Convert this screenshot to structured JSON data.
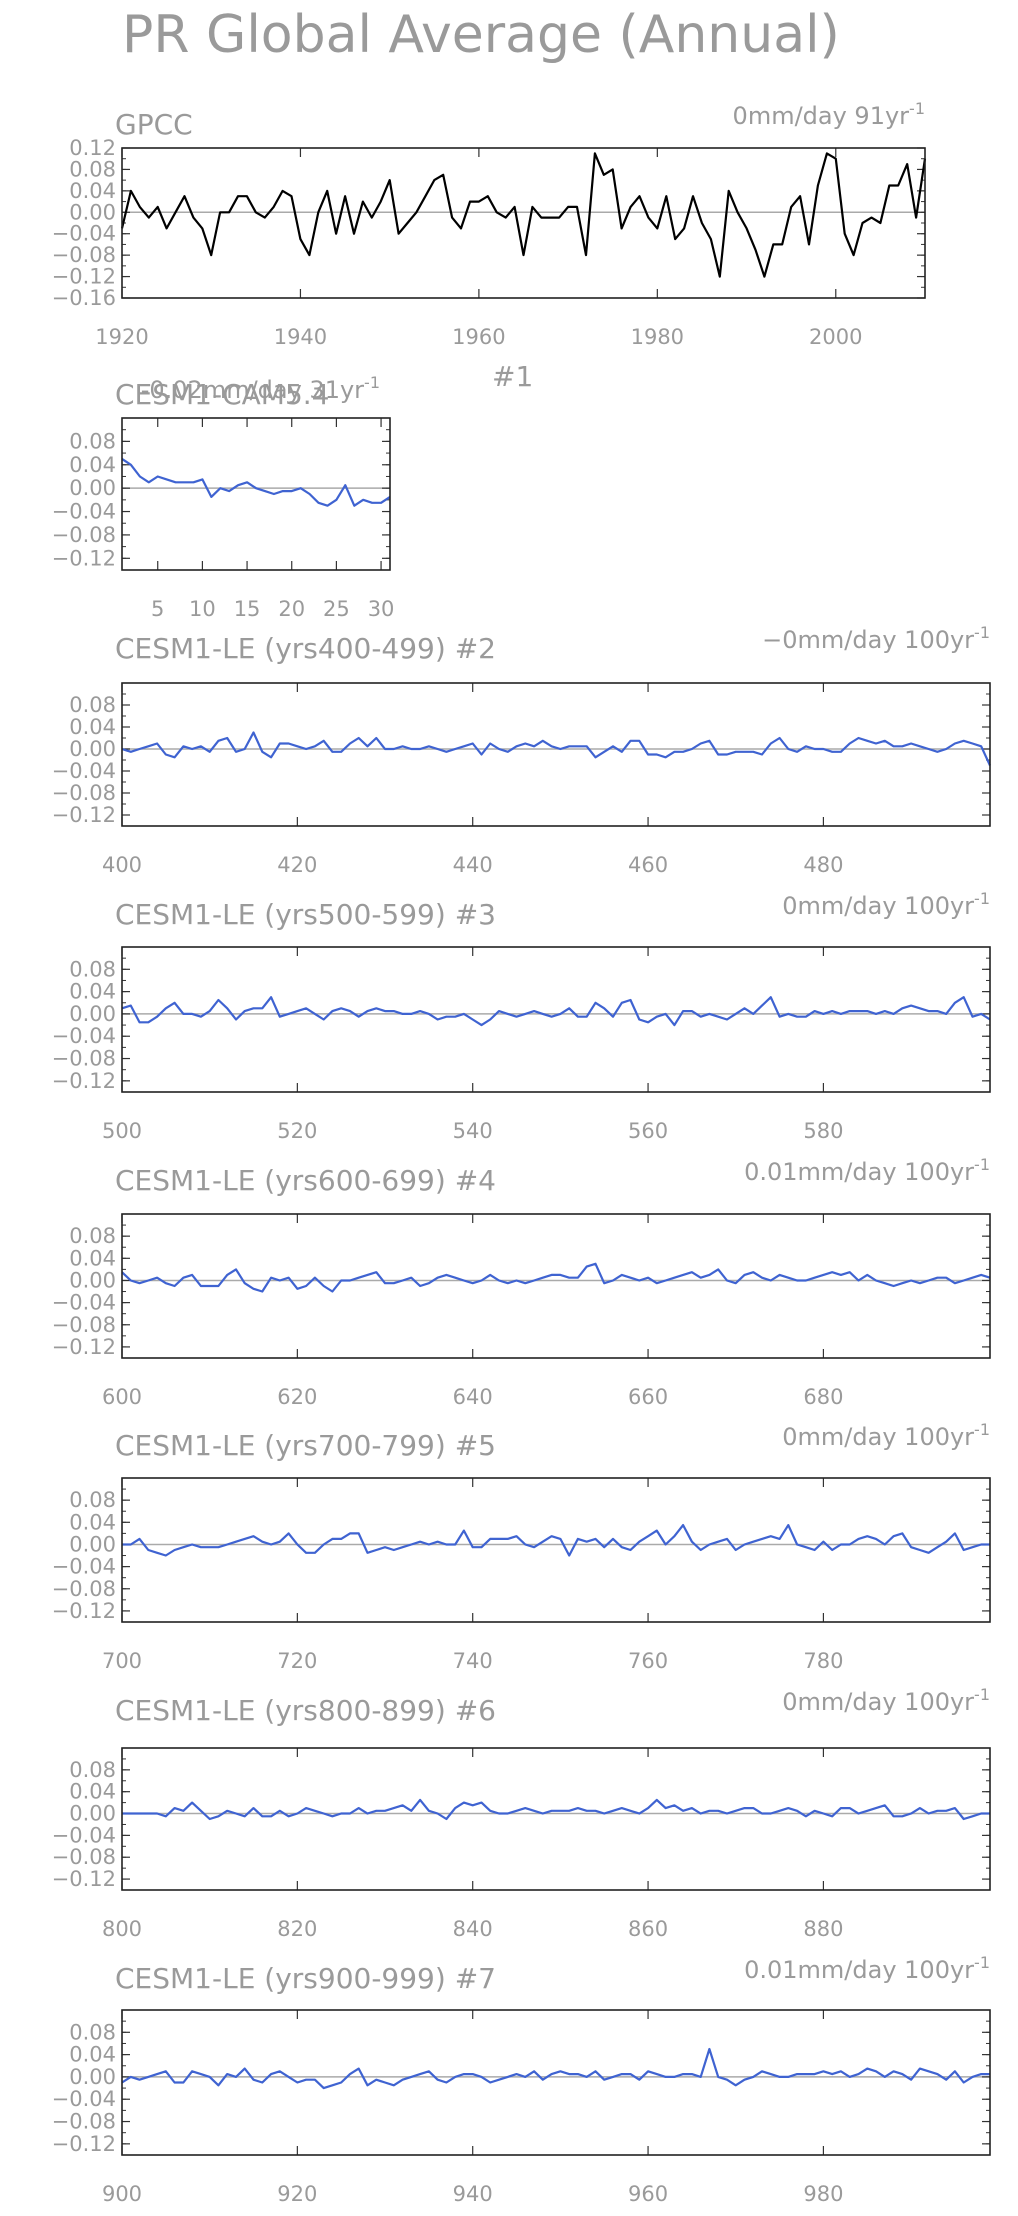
{
  "page_title": "PR Global Average (Annual)",
  "line_colors": {
    "observed": "#000000",
    "model": "#3f63d1",
    "zero_line": "#aaaaaa"
  },
  "chart_data": [
    {
      "type": "line",
      "title": "GPCC",
      "trend": "0mm/day 91yr",
      "trend_sup": "-1",
      "color": "#000000",
      "xlim": [
        1920,
        2010
      ],
      "ylim": [
        -0.16,
        0.12
      ],
      "yticks": [
        "0.12",
        "0.08",
        "0.04",
        "0.00",
        "−0.04",
        "−0.08",
        "−0.12",
        "−0.16"
      ],
      "xticks": [
        "1920",
        "1940",
        "1960",
        "1980",
        "2000"
      ],
      "xtick_values": [
        1920,
        1940,
        1960,
        1980,
        2000
      ],
      "x_start": 1920,
      "values": [
        -0.03,
        0.04,
        0.01,
        -0.01,
        0.01,
        -0.03,
        0.0,
        0.03,
        -0.01,
        -0.03,
        -0.08,
        0.0,
        0.0,
        0.03,
        0.03,
        0.0,
        -0.01,
        0.01,
        0.04,
        0.03,
        -0.05,
        -0.08,
        0.0,
        0.04,
        -0.04,
        0.03,
        -0.04,
        0.02,
        -0.01,
        0.02,
        0.06,
        -0.04,
        -0.02,
        0.0,
        0.03,
        0.06,
        0.07,
        -0.01,
        -0.03,
        0.02,
        0.02,
        0.03,
        0.0,
        -0.01,
        0.01,
        -0.08,
        0.01,
        -0.01,
        -0.01,
        -0.01,
        0.01,
        0.01,
        -0.08,
        0.11,
        0.07,
        0.08,
        -0.03,
        0.01,
        0.03,
        -0.01,
        -0.03,
        0.03,
        -0.05,
        -0.03,
        0.03,
        -0.02,
        -0.05,
        -0.12,
        0.04,
        0.0,
        -0.03,
        -0.07,
        -0.12,
        -0.06,
        -0.06,
        0.01,
        0.03,
        -0.06,
        0.05,
        0.11,
        0.1,
        -0.04,
        -0.08,
        -0.02,
        -0.01,
        -0.02,
        0.05,
        0.05,
        0.09,
        -0.01,
        0.1
      ]
    },
    {
      "type": "line",
      "title": "CESM1-CAM5.4",
      "title_right": "#1",
      "trend": "-0.02mm/day 31yr",
      "trend_sup": "-1",
      "color": "#3f63d1",
      "xlim": [
        1,
        31
      ],
      "ylim": [
        -0.14,
        0.12
      ],
      "yticks": [
        "0.08",
        "0.04",
        "0.00",
        "−0.04",
        "−0.08",
        "−0.12"
      ],
      "xticks": [
        "5",
        "10",
        "15",
        "20",
        "25",
        "30"
      ],
      "xtick_values": [
        5,
        10,
        15,
        20,
        25,
        30
      ],
      "x_start": 1,
      "values": [
        0.05,
        0.04,
        0.02,
        0.01,
        0.02,
        0.015,
        0.01,
        0.01,
        0.01,
        0.015,
        -0.015,
        0.0,
        -0.005,
        0.005,
        0.01,
        0.0,
        -0.005,
        -0.01,
        -0.005,
        -0.005,
        0.0,
        -0.01,
        -0.025,
        -0.03,
        -0.02,
        0.005,
        -0.03,
        -0.02,
        -0.025,
        -0.025,
        -0.015
      ]
    },
    {
      "type": "line",
      "title": "CESM1-LE (yrs400-499) #2",
      "trend": "−0mm/day 100yr",
      "trend_sup": "-1",
      "color": "#3f63d1",
      "xlim": [
        400,
        499
      ],
      "ylim": [
        -0.14,
        0.12
      ],
      "yticks": [
        "0.08",
        "0.04",
        "0.00",
        "−0.04",
        "−0.08",
        "−0.12"
      ],
      "xticks": [
        "400",
        "420",
        "440",
        "460",
        "480"
      ],
      "xtick_values": [
        400,
        420,
        440,
        460,
        480
      ],
      "x_start": 400,
      "values": [
        0.0,
        -0.005,
        0.0,
        0.005,
        0.01,
        -0.01,
        -0.015,
        0.005,
        0.0,
        0.005,
        -0.005,
        0.015,
        0.02,
        -0.005,
        0.0,
        0.03,
        -0.005,
        -0.015,
        0.01,
        0.01,
        0.005,
        0.0,
        0.005,
        0.015,
        -0.005,
        -0.005,
        0.01,
        0.02,
        0.005,
        0.02,
        0.0,
        0.0,
        0.005,
        0.0,
        0.0,
        0.005,
        0.0,
        -0.005,
        0.0,
        0.005,
        0.01,
        -0.01,
        0.01,
        0.0,
        -0.005,
        0.005,
        0.01,
        0.005,
        0.015,
        0.005,
        0.0,
        0.005,
        0.005,
        0.005,
        -0.015,
        -0.005,
        0.005,
        -0.005,
        0.015,
        0.015,
        -0.01,
        -0.01,
        -0.015,
        -0.005,
        -0.005,
        0.0,
        0.01,
        0.015,
        -0.01,
        -0.01,
        -0.005,
        -0.005,
        -0.005,
        -0.01,
        0.01,
        0.02,
        0.0,
        -0.005,
        0.005,
        0.0,
        0.0,
        -0.005,
        -0.005,
        0.01,
        0.02,
        0.015,
        0.01,
        0.015,
        0.005,
        0.005,
        0.01,
        0.005,
        0.0,
        -0.005,
        0.0,
        0.01,
        0.015,
        0.01,
        0.005,
        -0.03
      ]
    },
    {
      "type": "line",
      "title": "CESM1-LE (yrs500-599) #3",
      "trend": "0mm/day 100yr",
      "trend_sup": "-1",
      "color": "#3f63d1",
      "xlim": [
        500,
        599
      ],
      "ylim": [
        -0.14,
        0.12
      ],
      "yticks": [
        "0.08",
        "0.04",
        "0.00",
        "−0.04",
        "−0.08",
        "−0.12"
      ],
      "xticks": [
        "500",
        "520",
        "540",
        "560",
        "580"
      ],
      "xtick_values": [
        500,
        520,
        540,
        560,
        580
      ],
      "x_start": 500,
      "values": [
        0.01,
        0.015,
        -0.015,
        -0.015,
        -0.005,
        0.01,
        0.02,
        0.0,
        0.0,
        -0.005,
        0.005,
        0.025,
        0.01,
        -0.01,
        0.005,
        0.01,
        0.01,
        0.03,
        -0.005,
        0.0,
        0.005,
        0.01,
        0.0,
        -0.01,
        0.005,
        0.01,
        0.005,
        -0.005,
        0.005,
        0.01,
        0.005,
        0.005,
        0.0,
        0.0,
        0.005,
        0.0,
        -0.01,
        -0.005,
        -0.005,
        0.0,
        -0.01,
        -0.02,
        -0.01,
        0.005,
        0.0,
        -0.005,
        0.0,
        0.005,
        0.0,
        -0.005,
        0.0,
        0.01,
        -0.005,
        -0.005,
        0.02,
        0.01,
        -0.005,
        0.02,
        0.025,
        -0.01,
        -0.015,
        -0.005,
        0.0,
        -0.02,
        0.005,
        0.005,
        -0.005,
        0.0,
        -0.005,
        -0.01,
        0.0,
        0.01,
        0.0,
        0.015,
        0.03,
        -0.005,
        0.0,
        -0.005,
        -0.005,
        0.005,
        0.0,
        0.005,
        0.0,
        0.005,
        0.005,
        0.005,
        0.0,
        0.005,
        0.0,
        0.01,
        0.015,
        0.01,
        0.005,
        0.005,
        0.0,
        0.02,
        0.03,
        -0.005,
        0.0,
        -0.01
      ]
    },
    {
      "type": "line",
      "title": "CESM1-LE (yrs600-699) #4",
      "trend": "0.01mm/day 100yr",
      "trend_sup": "-1",
      "color": "#3f63d1",
      "xlim": [
        600,
        699
      ],
      "ylim": [
        -0.14,
        0.12
      ],
      "yticks": [
        "0.08",
        "0.04",
        "0.00",
        "−0.04",
        "−0.08",
        "−0.12"
      ],
      "xticks": [
        "600",
        "620",
        "640",
        "660",
        "680"
      ],
      "xtick_values": [
        600,
        620,
        640,
        660,
        680
      ],
      "x_start": 600,
      "values": [
        0.015,
        0.0,
        -0.005,
        0.0,
        0.005,
        -0.005,
        -0.01,
        0.005,
        0.01,
        -0.01,
        -0.01,
        -0.01,
        0.01,
        0.02,
        -0.005,
        -0.015,
        -0.02,
        0.005,
        0.0,
        0.005,
        -0.015,
        -0.01,
        0.005,
        -0.01,
        -0.02,
        0.0,
        0.0,
        0.005,
        0.01,
        0.015,
        -0.005,
        -0.005,
        0.0,
        0.005,
        -0.01,
        -0.005,
        0.005,
        0.01,
        0.005,
        0.0,
        -0.005,
        0.0,
        0.01,
        0.0,
        -0.005,
        0.0,
        -0.005,
        0.0,
        0.005,
        0.01,
        0.01,
        0.005,
        0.005,
        0.025,
        0.03,
        -0.005,
        0.0,
        0.01,
        0.005,
        0.0,
        0.005,
        -0.005,
        0.0,
        0.005,
        0.01,
        0.015,
        0.005,
        0.01,
        0.02,
        0.0,
        -0.005,
        0.01,
        0.015,
        0.005,
        0.0,
        0.01,
        0.005,
        0.0,
        0.0,
        0.005,
        0.01,
        0.015,
        0.01,
        0.015,
        0.0,
        0.01,
        0.0,
        -0.005,
        -0.01,
        -0.005,
        0.0,
        -0.005,
        0.0,
        0.005,
        0.005,
        -0.005,
        0.0,
        0.005,
        0.01,
        0.005
      ]
    },
    {
      "type": "line",
      "title": "CESM1-LE (yrs700-799) #5",
      "trend": "0mm/day 100yr",
      "trend_sup": "-1",
      "color": "#3f63d1",
      "xlim": [
        700,
        799
      ],
      "ylim": [
        -0.14,
        0.12
      ],
      "yticks": [
        "0.08",
        "0.04",
        "0.00",
        "−0.04",
        "−0.08",
        "−0.12"
      ],
      "xticks": [
        "700",
        "720",
        "740",
        "760",
        "780"
      ],
      "xtick_values": [
        700,
        720,
        740,
        760,
        780
      ],
      "x_start": 700,
      "values": [
        0.0,
        0.0,
        0.01,
        -0.01,
        -0.015,
        -0.02,
        -0.01,
        -0.005,
        0.0,
        -0.005,
        -0.005,
        -0.005,
        0.0,
        0.005,
        0.01,
        0.015,
        0.005,
        0.0,
        0.005,
        0.02,
        0.0,
        -0.015,
        -0.015,
        0.0,
        0.01,
        0.01,
        0.02,
        0.02,
        -0.015,
        -0.01,
        -0.005,
        -0.01,
        -0.005,
        0.0,
        0.005,
        0.0,
        0.005,
        0.0,
        0.0,
        0.025,
        -0.005,
        -0.005,
        0.01,
        0.01,
        0.01,
        0.015,
        0.0,
        -0.005,
        0.005,
        0.015,
        0.01,
        -0.02,
        0.01,
        0.005,
        0.01,
        -0.005,
        0.01,
        -0.005,
        -0.01,
        0.005,
        0.015,
        0.025,
        0.0,
        0.015,
        0.035,
        0.005,
        -0.01,
        0.0,
        0.005,
        0.01,
        -0.01,
        0.0,
        0.005,
        0.01,
        0.015,
        0.01,
        0.035,
        0.0,
        -0.005,
        -0.01,
        0.005,
        -0.01,
        0.0,
        0.0,
        0.01,
        0.015,
        0.01,
        0.0,
        0.015,
        0.02,
        -0.005,
        -0.01,
        -0.015,
        -0.005,
        0.005,
        0.02,
        -0.01,
        -0.005,
        0.0,
        0.0
      ]
    },
    {
      "type": "line",
      "title": "CESM1-LE (yrs800-899) #6",
      "trend": "0mm/day 100yr",
      "trend_sup": "-1",
      "color": "#3f63d1",
      "xlim": [
        800,
        899
      ],
      "ylim": [
        -0.14,
        0.12
      ],
      "yticks": [
        "0.08",
        "0.04",
        "0.00",
        "−0.04",
        "−0.08",
        "−0.12"
      ],
      "xticks": [
        "800",
        "820",
        "840",
        "860",
        "880"
      ],
      "xtick_values": [
        800,
        820,
        840,
        860,
        880
      ],
      "x_start": 800,
      "values": [
        0.0,
        0.0,
        0.0,
        0.0,
        0.0,
        -0.005,
        0.01,
        0.005,
        0.02,
        0.005,
        -0.01,
        -0.005,
        0.005,
        0.0,
        -0.005,
        0.01,
        -0.005,
        -0.005,
        0.005,
        -0.005,
        0.0,
        0.01,
        0.005,
        0.0,
        -0.005,
        0.0,
        0.0,
        0.01,
        0.0,
        0.005,
        0.005,
        0.01,
        0.015,
        0.005,
        0.025,
        0.005,
        0.0,
        -0.01,
        0.01,
        0.02,
        0.015,
        0.02,
        0.005,
        0.0,
        0.0,
        0.005,
        0.01,
        0.005,
        0.0,
        0.005,
        0.005,
        0.005,
        0.01,
        0.005,
        0.005,
        0.0,
        0.005,
        0.01,
        0.005,
        0.0,
        0.01,
        0.025,
        0.01,
        0.015,
        0.005,
        0.01,
        0.0,
        0.005,
        0.005,
        0.0,
        0.005,
        0.01,
        0.01,
        0.0,
        0.0,
        0.005,
        0.01,
        0.005,
        -0.005,
        0.005,
        0.0,
        -0.005,
        0.01,
        0.01,
        0.0,
        0.005,
        0.01,
        0.015,
        -0.005,
        -0.005,
        0.0,
        0.01,
        0.0,
        0.005,
        0.005,
        0.01,
        -0.01,
        -0.005,
        0.0,
        0.0
      ]
    },
    {
      "type": "line",
      "title": "CESM1-LE (yrs900-999) #7",
      "trend": "0.01mm/day 100yr",
      "trend_sup": "-1",
      "color": "#3f63d1",
      "xlim": [
        900,
        999
      ],
      "ylim": [
        -0.14,
        0.12
      ],
      "yticks": [
        "0.08",
        "0.04",
        "0.00",
        "−0.04",
        "−0.08",
        "−0.12"
      ],
      "xticks": [
        "900",
        "920",
        "940",
        "960",
        "980"
      ],
      "xtick_values": [
        900,
        920,
        940,
        960,
        980
      ],
      "x_start": 900,
      "values": [
        -0.01,
        0.0,
        -0.005,
        0.0,
        0.005,
        0.01,
        -0.01,
        -0.01,
        0.01,
        0.005,
        0.0,
        -0.015,
        0.005,
        0.0,
        0.015,
        -0.005,
        -0.01,
        0.005,
        0.01,
        0.0,
        -0.01,
        -0.005,
        -0.005,
        -0.02,
        -0.015,
        -0.01,
        0.005,
        0.015,
        -0.015,
        -0.005,
        -0.01,
        -0.015,
        -0.005,
        0.0,
        0.005,
        0.01,
        -0.005,
        -0.01,
        0.0,
        0.005,
        0.005,
        0.0,
        -0.01,
        -0.005,
        0.0,
        0.005,
        0.0,
        0.01,
        -0.005,
        0.005,
        0.01,
        0.005,
        0.005,
        0.0,
        0.01,
        -0.005,
        0.0,
        0.005,
        0.005,
        -0.005,
        0.01,
        0.005,
        0.0,
        0.0,
        0.005,
        0.005,
        0.0,
        0.05,
        0.0,
        -0.005,
        -0.015,
        -0.005,
        0.0,
        0.01,
        0.005,
        0.0,
        0.0,
        0.005,
        0.005,
        0.005,
        0.01,
        0.005,
        0.01,
        0.0,
        0.005,
        0.015,
        0.01,
        0.0,
        0.01,
        0.005,
        -0.005,
        0.015,
        0.01,
        0.005,
        -0.005,
        0.01,
        -0.01,
        0.0,
        0.005,
        0.005
      ]
    }
  ]
}
